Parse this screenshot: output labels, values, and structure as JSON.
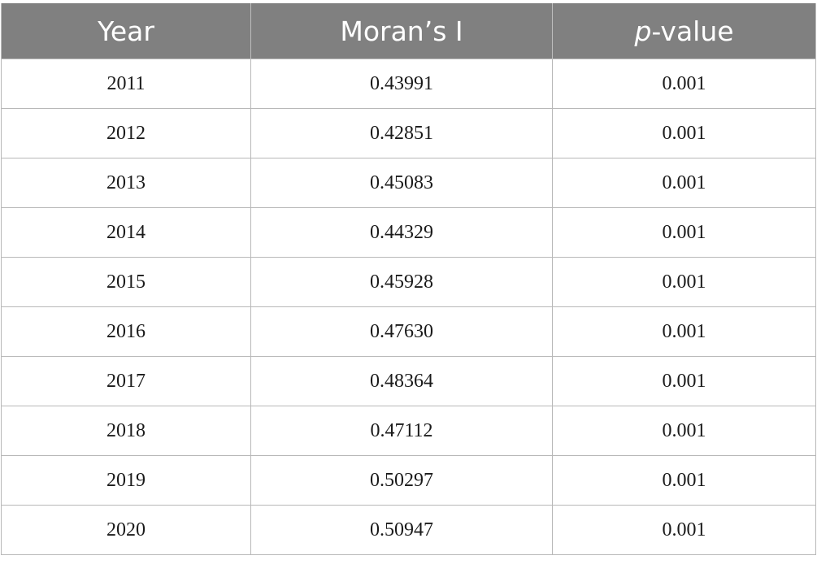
{
  "table": {
    "headers": {
      "year": "Year",
      "morans_i": "Moran’s I",
      "p_value_italic": "p",
      "p_value_rest": "-value"
    },
    "rows": [
      {
        "year": "2011",
        "morans_i": "0.43991",
        "p_value": "0.001"
      },
      {
        "year": "2012",
        "morans_i": "0.42851",
        "p_value": "0.001"
      },
      {
        "year": "2013",
        "morans_i": "0.45083",
        "p_value": "0.001"
      },
      {
        "year": "2014",
        "morans_i": "0.44329",
        "p_value": "0.001"
      },
      {
        "year": "2015",
        "morans_i": "0.45928",
        "p_value": "0.001"
      },
      {
        "year": "2016",
        "morans_i": "0.47630",
        "p_value": "0.001"
      },
      {
        "year": "2017",
        "morans_i": "0.48364",
        "p_value": "0.001"
      },
      {
        "year": "2018",
        "morans_i": "0.47112",
        "p_value": "0.001"
      },
      {
        "year": "2019",
        "morans_i": "0.50297",
        "p_value": "0.001"
      },
      {
        "year": "2020",
        "morans_i": "0.50947",
        "p_value": "0.001"
      }
    ],
    "colors": {
      "header_bg": "#808080",
      "header_text": "#ffffff",
      "border": "#b8b8b8"
    }
  }
}
